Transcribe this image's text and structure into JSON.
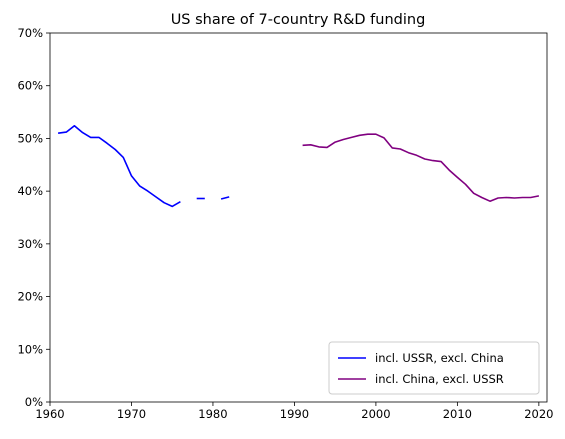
{
  "chart_data": {
    "type": "line",
    "title": "US share of 7-country R&D funding",
    "xlabel": "",
    "ylabel": "",
    "xlim": [
      1960,
      2021
    ],
    "ylim": [
      0,
      70
    ],
    "x_ticks": [
      1960,
      1970,
      1980,
      1990,
      2000,
      2010,
      2020
    ],
    "x_tick_labels": [
      "1960",
      "1970",
      "1980",
      "1990",
      "2000",
      "2010",
      "2020"
    ],
    "y_ticks": [
      0,
      10,
      20,
      30,
      40,
      50,
      60,
      70
    ],
    "y_tick_labels": [
      "0%",
      "10%",
      "20%",
      "30%",
      "40%",
      "50%",
      "60%",
      "70%"
    ],
    "grid": false,
    "legend_position": "lower-right",
    "series": [
      {
        "name": "incl. USSR, excl. China",
        "color": "#0000ff",
        "x": [
          1961,
          1962,
          1963,
          1964,
          1965,
          1966,
          1967,
          1968,
          1969,
          1970,
          1971,
          1972,
          1973,
          1974,
          1975,
          1976,
          1977,
          1978,
          1979,
          1980,
          1981,
          1982
        ],
        "y": [
          51.0,
          51.2,
          52.4,
          51.1,
          50.2,
          50.2,
          49.1,
          47.9,
          46.4,
          42.9,
          41.0,
          40.0,
          38.9,
          37.8,
          37.1,
          38.0,
          null,
          38.6,
          38.6,
          null,
          38.5,
          38.9
        ]
      },
      {
        "name": "incl. China, excl. USSR",
        "color": "#800080",
        "x": [
          1991,
          1992,
          1993,
          1994,
          1995,
          1996,
          1997,
          1998,
          1999,
          2000,
          2001,
          2002,
          2003,
          2004,
          2005,
          2006,
          2007,
          2008,
          2009,
          2010,
          2011,
          2012,
          2013,
          2014,
          2015,
          2016,
          2017,
          2018,
          2019,
          2020
        ],
        "y": [
          48.7,
          48.8,
          48.4,
          48.3,
          49.3,
          49.8,
          50.2,
          50.6,
          50.8,
          50.8,
          50.1,
          48.2,
          48.0,
          47.3,
          46.8,
          46.1,
          45.8,
          45.6,
          44.0,
          42.6,
          41.3,
          39.6,
          38.8,
          38.1,
          38.7,
          38.8,
          38.7,
          38.8,
          38.8,
          39.1
        ]
      }
    ]
  }
}
